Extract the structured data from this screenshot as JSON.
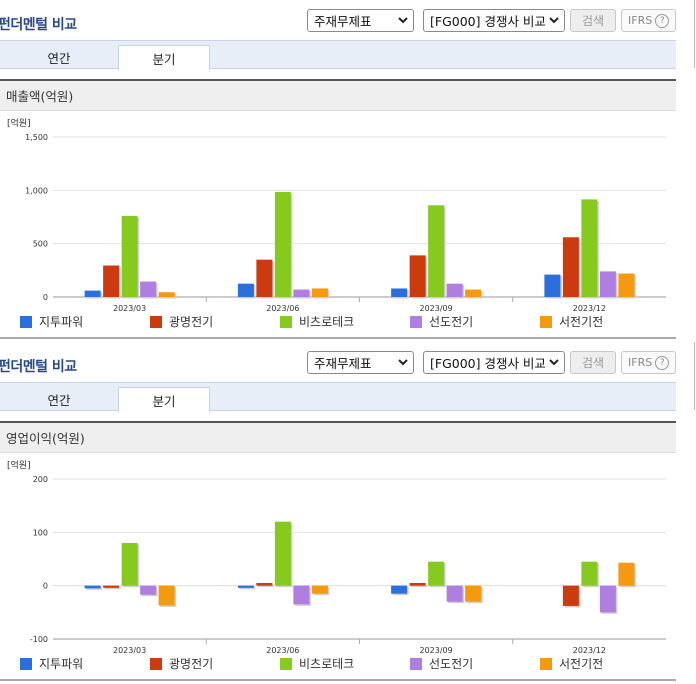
{
  "colors": [
    "#2a6fdb",
    "#cc3a0f",
    "#86c91f",
    "#b07ee0",
    "#f59a0f"
  ],
  "legend": [
    "지투파워",
    "광명전기",
    "비츠로테크",
    "선도전기",
    "서전기전"
  ],
  "panels": [
    {
      "title": "펀더멘털 비교",
      "select1": "주재무제표",
      "select2": "[FG000] 경쟁사 비교",
      "search_label": "검색",
      "ifrs_label": "IFRS",
      "help_glyph": "?",
      "tabs": [
        "연간",
        "분기"
      ],
      "active_tab": "분기",
      "section_title": "매출액(억원)",
      "unit_label": "[억원]"
    },
    {
      "title": "펀더멘털 비교",
      "select1": "주재무제표",
      "select2": "[FG000] 경쟁사 비교",
      "search_label": "검색",
      "ifrs_label": "IFRS",
      "help_glyph": "?",
      "tabs": [
        "연간",
        "분기"
      ],
      "active_tab": "분기",
      "section_title": "영업이익(억원)",
      "unit_label": "[억원]"
    }
  ],
  "chart_data": [
    {
      "type": "bar",
      "categories": [
        "2023/03",
        "2023/06",
        "2023/09",
        "2023/12"
      ],
      "ylim": [
        0,
        1500
      ],
      "yticks": [
        0,
        500,
        1000,
        1500
      ],
      "ytick_labels": [
        "0",
        "500",
        "1,000",
        "1,500"
      ],
      "series": [
        {
          "name": "지투파워",
          "values": [
            60,
            125,
            80,
            210
          ]
        },
        {
          "name": "광명전기",
          "values": [
            295,
            350,
            390,
            560
          ]
        },
        {
          "name": "비츠로테크",
          "values": [
            760,
            985,
            860,
            915
          ]
        },
        {
          "name": "선도전기",
          "values": [
            145,
            70,
            125,
            240
          ]
        },
        {
          "name": "서전기전",
          "values": [
            45,
            80,
            70,
            220
          ]
        }
      ],
      "grid": true,
      "legend_position": "bottom"
    },
    {
      "type": "bar",
      "categories": [
        "2023/03",
        "2023/06",
        "2023/09",
        "2023/12"
      ],
      "ylim": [
        -100,
        200
      ],
      "yticks": [
        -100,
        0,
        100,
        200
      ],
      "ytick_labels": [
        "-100",
        "0",
        "100",
        "200"
      ],
      "series": [
        {
          "name": "지투파워",
          "values": [
            -5,
            -4,
            -15,
            0
          ]
        },
        {
          "name": "광명전기",
          "values": [
            -4,
            5,
            5,
            -38
          ]
        },
        {
          "name": "비츠로테크",
          "values": [
            80,
            120,
            45,
            45
          ]
        },
        {
          "name": "선도전기",
          "values": [
            -17,
            -35,
            -30,
            -50
          ]
        },
        {
          "name": "서전기전",
          "values": [
            -37,
            -15,
            -30,
            43
          ]
        }
      ],
      "grid": true,
      "legend_position": "bottom"
    }
  ]
}
